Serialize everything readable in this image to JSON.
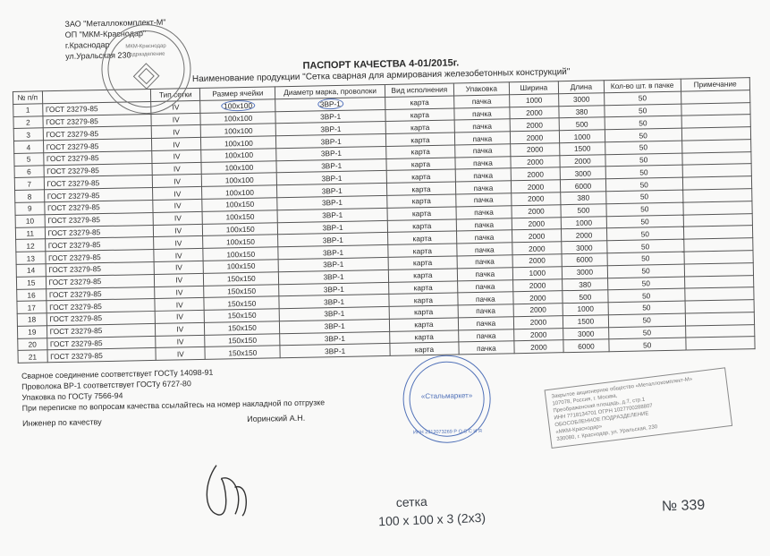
{
  "header": {
    "l1": "ЗАО \"Металлокомплект-М\"",
    "l2": "ОП \"МКМ-Краснодар\"",
    "l3": "г.Краснодар",
    "l4": "ул.Уральская 230"
  },
  "title": "ПАСПОРТ КАЧЕСТВА 4-01/2015г.",
  "subtitle": "Наименование продукции \"Сетка сварная для армирования железобетонных конструкций\"",
  "columns": [
    "№ п/п",
    "",
    "Тип сетки",
    "Размер ячейки",
    "Диаметр марка, проволоки",
    "Вид исполнения",
    "Упаковка",
    "Ширина",
    "Длина",
    "Кол-во шт. в пачке",
    "Примечание"
  ],
  "rows": [
    [
      "1",
      "ГОСТ 23279-85",
      "IV",
      "100х100",
      "3ВР-1",
      "карта",
      "пачка",
      "1000",
      "3000",
      "50",
      ""
    ],
    [
      "2",
      "ГОСТ 23279-85",
      "IV",
      "100х100",
      "3ВР-1",
      "карта",
      "пачка",
      "2000",
      "380",
      "50",
      ""
    ],
    [
      "3",
      "ГОСТ 23279-85",
      "IV",
      "100х100",
      "3ВР-1",
      "карта",
      "пачка",
      "2000",
      "500",
      "50",
      ""
    ],
    [
      "4",
      "ГОСТ 23279-85",
      "IV",
      "100х100",
      "3ВР-1",
      "карта",
      "пачка",
      "2000",
      "1000",
      "50",
      ""
    ],
    [
      "5",
      "ГОСТ 23279-85",
      "IV",
      "100х100",
      "3ВР-1",
      "карта",
      "пачка",
      "2000",
      "1500",
      "50",
      ""
    ],
    [
      "6",
      "ГОСТ 23279-85",
      "IV",
      "100х100",
      "3ВР-1",
      "карта",
      "пачка",
      "2000",
      "2000",
      "50",
      ""
    ],
    [
      "7",
      "ГОСТ 23279-85",
      "IV",
      "100х100",
      "3ВР-1",
      "карта",
      "пачка",
      "2000",
      "3000",
      "50",
      ""
    ],
    [
      "8",
      "ГОСТ 23279-85",
      "IV",
      "100х100",
      "3ВР-1",
      "карта",
      "пачка",
      "2000",
      "6000",
      "50",
      ""
    ],
    [
      "9",
      "ГОСТ 23279-85",
      "IV",
      "100х150",
      "3ВР-1",
      "карта",
      "пачка",
      "2000",
      "380",
      "50",
      ""
    ],
    [
      "10",
      "ГОСТ 23279-85",
      "IV",
      "100х150",
      "3ВР-1",
      "карта",
      "пачка",
      "2000",
      "500",
      "50",
      ""
    ],
    [
      "11",
      "ГОСТ 23279-85",
      "IV",
      "100х150",
      "3ВР-1",
      "карта",
      "пачка",
      "2000",
      "1000",
      "50",
      ""
    ],
    [
      "12",
      "ГОСТ 23279-85",
      "IV",
      "100х150",
      "3ВР-1",
      "карта",
      "пачка",
      "2000",
      "2000",
      "50",
      ""
    ],
    [
      "13",
      "ГОСТ 23279-85",
      "IV",
      "100х150",
      "3ВР-1",
      "карта",
      "пачка",
      "2000",
      "3000",
      "50",
      ""
    ],
    [
      "14",
      "ГОСТ 23279-85",
      "IV",
      "100х150",
      "3ВР-1",
      "карта",
      "пачка",
      "2000",
      "6000",
      "50",
      ""
    ],
    [
      "15",
      "ГОСТ 23279-85",
      "IV",
      "150х150",
      "3ВР-1",
      "карта",
      "пачка",
      "1000",
      "3000",
      "50",
      ""
    ],
    [
      "16",
      "ГОСТ 23279-85",
      "IV",
      "150х150",
      "3ВР-1",
      "карта",
      "пачка",
      "2000",
      "380",
      "50",
      ""
    ],
    [
      "17",
      "ГОСТ 23279-85",
      "IV",
      "150х150",
      "3ВР-1",
      "карта",
      "пачка",
      "2000",
      "500",
      "50",
      ""
    ],
    [
      "18",
      "ГОСТ 23279-85",
      "IV",
      "150х150",
      "3ВР-1",
      "карта",
      "пачка",
      "2000",
      "1000",
      "50",
      ""
    ],
    [
      "19",
      "ГОСТ 23279-85",
      "IV",
      "150х150",
      "3ВР-1",
      "карта",
      "пачка",
      "2000",
      "1500",
      "50",
      ""
    ],
    [
      "20",
      "ГОСТ 23279-85",
      "IV",
      "150х150",
      "3ВР-1",
      "карта",
      "пачка",
      "2000",
      "3000",
      "50",
      ""
    ],
    [
      "21",
      "ГОСТ 23279-85",
      "IV",
      "150х150",
      "3ВР-1",
      "карта",
      "пачка",
      "2000",
      "6000",
      "50",
      ""
    ]
  ],
  "col_widths": [
    "28px",
    "110px",
    "50px",
    "76px",
    "60px",
    "64px",
    "56px",
    "50px",
    "46px",
    "54px",
    "70px"
  ],
  "notes": {
    "n1": "Сварное соединение соответствует ГОСТу 14098-91",
    "n2": "Проволока ВР-1 соответствует ГОСТу 6727-80",
    "n3": "Упаковка по ГОСТу 7566-94",
    "n4": "При переписке по вопросам качества ссылайтесь на номер накладной по отгрузке"
  },
  "engineer": {
    "label": "Инженер по качеству",
    "name": "Иоринский А.Н."
  },
  "hand": {
    "h1": "сетка",
    "h2": "100 х 100 х 3 (2х3)",
    "h3": "№ 339"
  },
  "stamp_left": {
    "name": "МКМ-Краснодар",
    "sub": "подразделение"
  },
  "stamp_center": {
    "name": "«Стальмаркет»",
    "ring": "ИНН 2312073269  Р О С С И Я"
  },
  "rectstamp": {
    "l1": "Закрытое акционерное общество «Металлокомплект-М»",
    "l2": "107078, Россия, г. Москва,",
    "l3": "Преображенская площадь, д.7, стр.1",
    "l4": "ИНН 7718134701  ОГРН 1027700288807",
    "l5": "ОБОСОБЛЕННОЕ ПОДРАЗДЕЛЕНИЕ",
    "l6": "«МКМ-Краснодар»",
    "l7": "330080, г. Краснодар, ул. Уральская, 230"
  },
  "colors": {
    "ink": "#2a2a2a",
    "blue": "#5071b8",
    "paper": "#f9f9f8",
    "bg": "#e8e9eb",
    "border": "#555",
    "stamp_gray": "#8a8a8a"
  }
}
